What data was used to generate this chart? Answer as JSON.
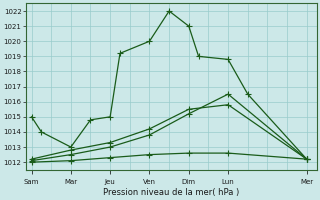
{
  "title": "Pression niveau de la mer( hPa )",
  "bg_color": "#cce8e8",
  "grid_color": "#99cccc",
  "line_color": "#1a5c1a",
  "ylim": [
    1011.5,
    1022.5
  ],
  "yticks": [
    1012,
    1013,
    1014,
    1015,
    1016,
    1017,
    1018,
    1019,
    1020,
    1021,
    1022
  ],
  "x_labels": [
    "Sam",
    "Mar",
    "Jeu",
    "Ven",
    "Dim",
    "Lun",
    "Mer"
  ],
  "x_tick_pos": [
    0,
    2,
    4,
    6,
    8,
    10,
    14
  ],
  "xlim": [
    -0.3,
    14.5
  ],
  "line1_x": [
    0,
    0.5,
    2,
    3,
    4,
    4.5,
    6,
    7,
    8,
    8.5,
    10,
    11,
    14
  ],
  "line1_y": [
    1015.0,
    1014.0,
    1013.0,
    1014.8,
    1015.0,
    1019.2,
    1020.0,
    1022.0,
    1021.0,
    1019.0,
    1018.8,
    1016.5,
    1012.2
  ],
  "line2_x": [
    0,
    2,
    4,
    6,
    8,
    10,
    14
  ],
  "line2_y": [
    1012.0,
    1012.1,
    1012.3,
    1012.5,
    1012.6,
    1012.6,
    1012.2
  ],
  "line3_x": [
    0,
    2,
    4,
    6,
    8,
    10,
    14
  ],
  "line3_y": [
    1012.1,
    1012.5,
    1013.0,
    1013.8,
    1015.2,
    1016.5,
    1012.2
  ],
  "line4_x": [
    0,
    2,
    4,
    6,
    8,
    10,
    14
  ],
  "line4_y": [
    1012.2,
    1012.8,
    1013.3,
    1014.2,
    1015.5,
    1015.8,
    1012.2
  ],
  "markersize": 2.5,
  "linewidth": 0.9
}
